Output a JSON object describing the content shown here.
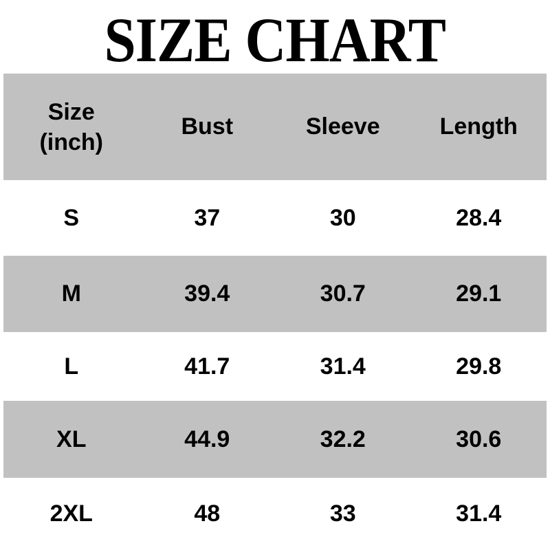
{
  "title": "SIZE CHART",
  "colors": {
    "row_band_gray": "#c1c1c1",
    "background": "#ffffff",
    "text": "#000000"
  },
  "table": {
    "header": {
      "size_line1": "Size",
      "size_line2": "(inch)",
      "bust": "Bust",
      "sleeve": "Sleeve",
      "length": "Length"
    },
    "rows": [
      [
        "S",
        "37",
        "30",
        "28.4"
      ],
      [
        "M",
        "39.4",
        "30.7",
        "29.1"
      ],
      [
        "L",
        "41.7",
        "31.4",
        "29.8"
      ],
      [
        "XL",
        "44.9",
        "32.2",
        "30.6"
      ],
      [
        "2XL",
        "48",
        "33",
        "31.4"
      ]
    ]
  },
  "chart_data": {
    "type": "table",
    "title": "SIZE CHART",
    "unit": "inch",
    "columns": [
      "Size (inch)",
      "Bust",
      "Sleeve",
      "Length"
    ],
    "rows": [
      {
        "size": "S",
        "bust": 37,
        "sleeve": 30,
        "length": 28.4
      },
      {
        "size": "M",
        "bust": 39.4,
        "sleeve": 30.7,
        "length": 29.1
      },
      {
        "size": "L",
        "bust": 41.7,
        "sleeve": 31.4,
        "length": 29.8
      },
      {
        "size": "XL",
        "bust": 44.9,
        "sleeve": 32.2,
        "length": 30.6
      },
      {
        "size": "2XL",
        "bust": 48,
        "sleeve": 33,
        "length": 31.4
      }
    ],
    "layout": {
      "striped_rows": [
        "header",
        "M",
        "XL"
      ],
      "header_taller": true,
      "grid": false
    }
  }
}
